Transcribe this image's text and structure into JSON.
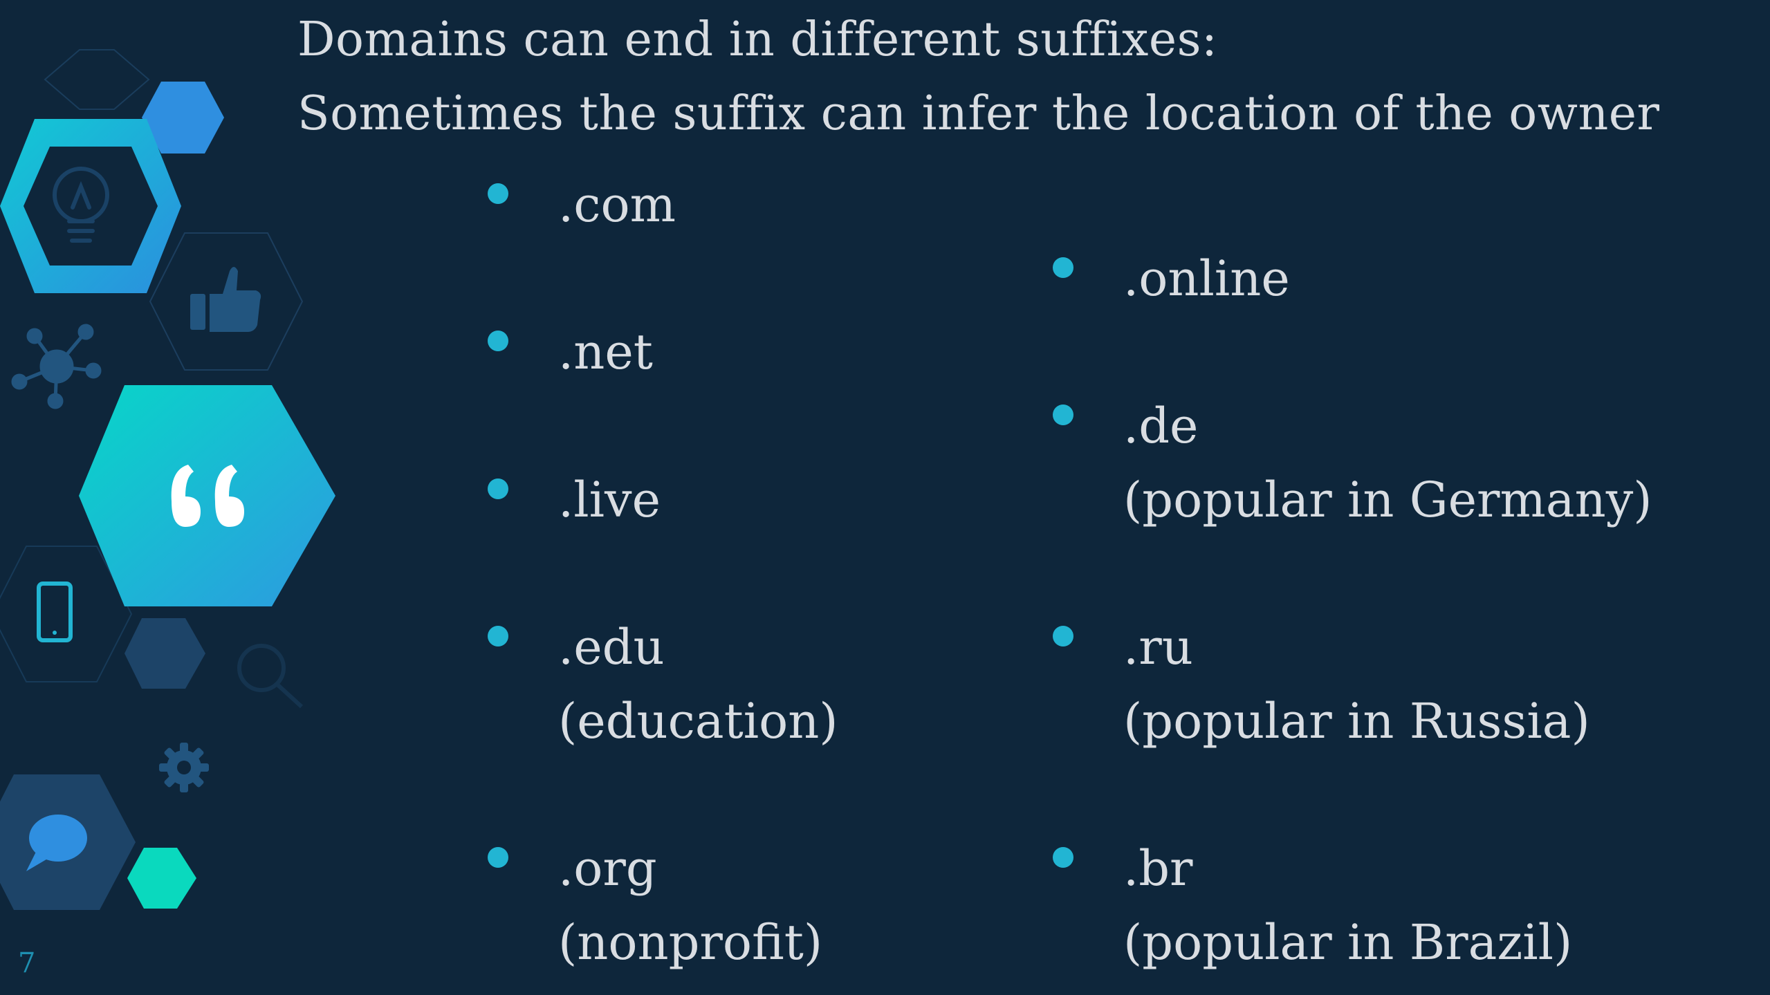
{
  "slide": {
    "title_line1": "Domains can end in different suffixes:",
    "title_line2": "Sometimes the suffix can infer the location of the owner",
    "page_number": "7"
  },
  "left_column": [
    {
      "suffix": ".com",
      "note": ""
    },
    {
      "suffix": ".net",
      "note": ""
    },
    {
      "suffix": ".live",
      "note": ""
    },
    {
      "suffix": ".edu",
      "note": "(education)"
    },
    {
      "suffix": ".org",
      "note": "(nonprofit)"
    }
  ],
  "right_column": [
    {
      "suffix": ".online",
      "note": ""
    },
    {
      "suffix": ".de",
      "note": "(popular in Germany)"
    },
    {
      "suffix": ".ru",
      "note": "(popular in Russia)"
    },
    {
      "suffix": ".br",
      "note": "(popular in Brazil)"
    }
  ],
  "decoration": {
    "icons": [
      "lightbulb-icon",
      "thumbs-up-icon",
      "network-icon",
      "quote-icon",
      "smartphone-icon",
      "magnifier-icon",
      "gear-icon",
      "speech-bubble-icon"
    ],
    "colors": {
      "background": "#0e263b",
      "teal": "#08d6c8",
      "blue": "#2f8fe0",
      "bullet": "#22b5d3",
      "dark_hex": "#1d4468"
    }
  }
}
